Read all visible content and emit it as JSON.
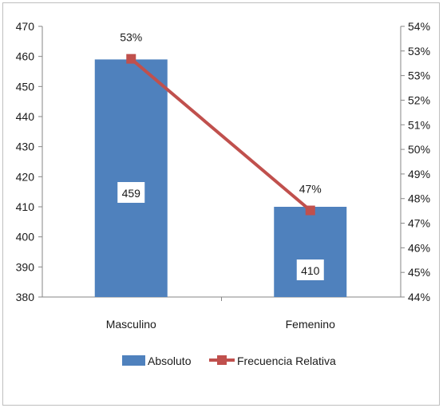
{
  "chart_data": {
    "type": "bar",
    "title": "",
    "categories": [
      "Masculino",
      "Femenino"
    ],
    "y_left": {
      "min": 380,
      "max": 470,
      "step": 10,
      "ticks": [
        "380",
        "390",
        "400",
        "410",
        "420",
        "430",
        "440",
        "450",
        "460",
        "470"
      ]
    },
    "y_right": {
      "min": 0.44,
      "max": 0.54,
      "ticks": [
        "44%",
        "45%",
        "46%",
        "47%",
        "48%",
        "49%",
        "50%",
        "51%",
        "52%",
        "53%",
        "53%",
        "54%"
      ]
    },
    "series": [
      {
        "name": "Absoluto",
        "kind": "bar",
        "axis": "left",
        "color": "#4f81bd",
        "values": [
          459,
          410
        ],
        "labels": [
          "459",
          "410"
        ]
      },
      {
        "name": "Frecuencia Relativa",
        "kind": "line",
        "axis": "right",
        "color": "#c0504d",
        "values": [
          0.528,
          0.472
        ],
        "labels": [
          "53%",
          "47%"
        ]
      }
    ],
    "legend": "bottom"
  }
}
